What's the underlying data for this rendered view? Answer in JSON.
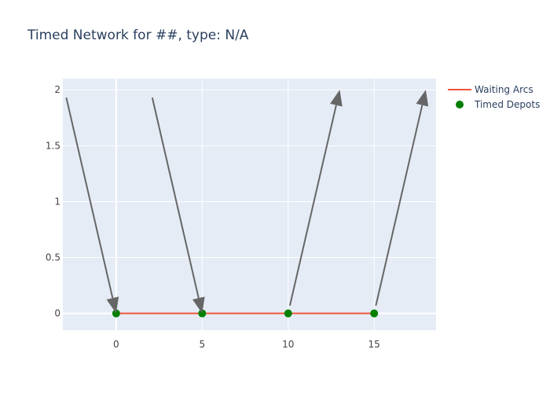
{
  "colors": {
    "plot_bg": "#e5ecf6",
    "grid": "#ffffff",
    "waiting_arc": "#ef553b",
    "depot": "#008000",
    "arrow": "#666666",
    "title": "#2a3f5f",
    "tick": "#444444"
  },
  "chart_data": {
    "type": "scatter",
    "title": "Timed Network for ##, type: N/A",
    "xlabel": "",
    "ylabel": "",
    "xlim": [
      -3.1,
      18.6
    ],
    "ylim": [
      -0.15,
      2.1
    ],
    "xticks": [
      0,
      5,
      10,
      15
    ],
    "xtick_labels": [
      "0",
      "5",
      "10",
      "15"
    ],
    "yticks": [
      0,
      0.5,
      1,
      1.5,
      2
    ],
    "ytick_labels": [
      "0",
      "0.5",
      "1",
      "1.5",
      "2"
    ],
    "grid": true,
    "legend_position": "top-right",
    "series": [
      {
        "name": "Waiting Arcs",
        "mode": "lines",
        "x": [
          0,
          5,
          10,
          15
        ],
        "y": [
          0,
          0,
          0,
          0
        ]
      },
      {
        "name": "Timed Depots",
        "mode": "markers",
        "x": [
          0,
          5,
          10,
          15
        ],
        "y": [
          0,
          0,
          0,
          0
        ]
      }
    ],
    "annotations": [
      {
        "from": [
          -2.9,
          1.93
        ],
        "to": [
          0,
          0
        ]
      },
      {
        "from": [
          2.1,
          1.93
        ],
        "to": [
          5,
          0
        ]
      },
      {
        "from": [
          10.1,
          0.07
        ],
        "to": [
          13.0,
          2.0
        ]
      },
      {
        "from": [
          15.1,
          0.07
        ],
        "to": [
          18.0,
          2.0
        ]
      }
    ]
  }
}
